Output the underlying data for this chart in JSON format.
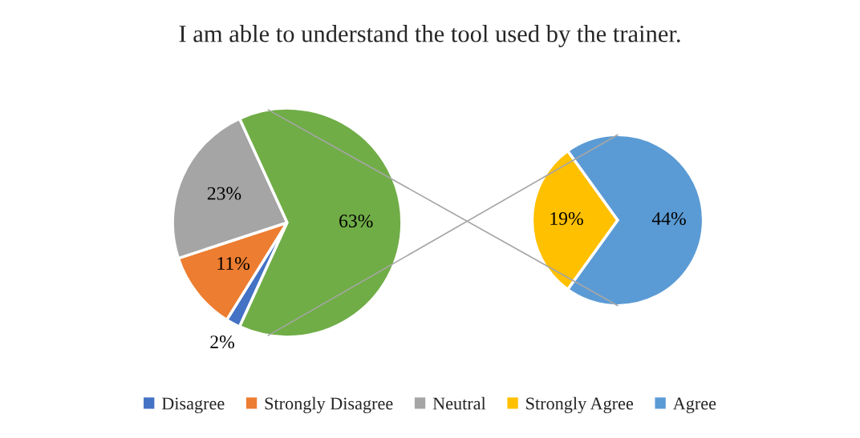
{
  "chart_data": [
    {
      "type": "pie",
      "title": "I am able to understand the tool used by the trainer.",
      "categories": [
        "Disagree",
        "Strongly Disagree",
        "Neutral",
        null
      ],
      "values": [
        2,
        11,
        23,
        63
      ],
      "colors": [
        "#4472c4",
        "#ed7d31",
        "#a5a5a5",
        "#70ad47"
      ],
      "value_labels": [
        "2%",
        "11%",
        "23%",
        "63%"
      ],
      "legend": "bottom"
    },
    {
      "type": "pie",
      "categories": [
        "Strongly Agree",
        "Agree"
      ],
      "values": [
        19,
        44
      ],
      "colors": [
        "#ffc000",
        "#5b9bd5"
      ],
      "value_labels": [
        "19%",
        "44%"
      ],
      "legend": "bottom"
    }
  ]
}
